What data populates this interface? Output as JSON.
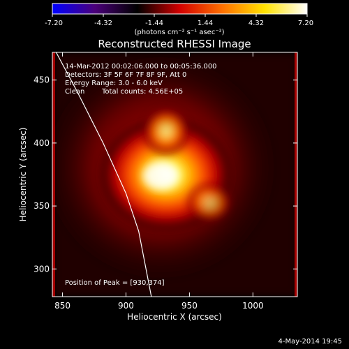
{
  "chart_data": {
    "type": "heatmap",
    "title": "Reconstructed RHESSI Image",
    "xlabel": "Heliocentric X (arcsec)",
    "ylabel": "Heliocentric Y (arcsec)",
    "xlim": [
      842,
      1035
    ],
    "ylim": [
      278,
      472
    ],
    "x_ticks": [
      850,
      900,
      950,
      1000
    ],
    "y_ticks": [
      300,
      350,
      400,
      450
    ],
    "colorbar": {
      "min": -7.2,
      "max": 7.2,
      "ticks": [
        "-7.20",
        "-4.32",
        "-1.44",
        "1.44",
        "4.32",
        "7.20"
      ],
      "unit_label": "(photons cm⁻² s⁻¹ asec⁻²)",
      "colors": [
        "#0000ff",
        "#4b007a",
        "#000000",
        "#d20000",
        "#ff7000",
        "#ffe200",
        "#ffffff"
      ]
    },
    "annotations": {
      "time_range": "14-Mar-2012 00:02:06.000 to 00:05:36.000",
      "detectors": "Detectors: 3F 5F 6F 7F 8F 9F, Att 0",
      "energy": "Energy Range: 3.0 - 6.0 keV",
      "algorithm": "Clean",
      "total_counts": "Total counts: 4.56E+05",
      "peak_text": "Position of Peak = [930,374]"
    },
    "peak": {
      "x": 930,
      "y": 374
    },
    "limb_curve": [
      [
        845,
        472
      ],
      [
        862,
        440
      ],
      [
        882,
        400
      ],
      [
        900,
        360
      ],
      [
        910,
        330
      ],
      [
        920,
        278
      ]
    ]
  },
  "footer": {
    "date": "4-May-2014 19:45"
  }
}
